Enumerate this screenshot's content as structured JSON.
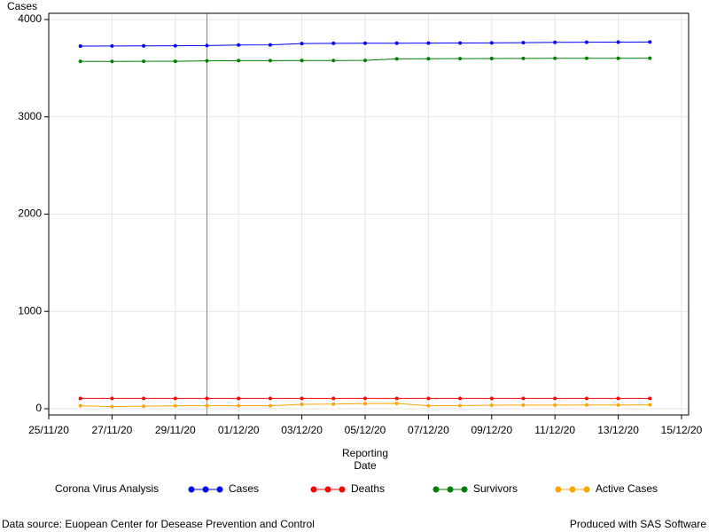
{
  "chart_data": {
    "type": "line",
    "y_label": "Cases",
    "x_label": [
      "Reporting",
      "Date"
    ],
    "legend_title": "Corona Virus Analysis",
    "x": [
      "26/11/20",
      "27/11/20",
      "28/11/20",
      "29/11/20",
      "30/11/20",
      "01/12/20",
      "02/12/20",
      "03/12/20",
      "04/12/20",
      "05/12/20",
      "06/12/20",
      "07/12/20",
      "08/12/20",
      "09/12/20",
      "10/12/20",
      "11/12/20",
      "12/12/20",
      "13/12/20",
      "14/12/20"
    ],
    "series": [
      {
        "name": "Cases",
        "color": "#0000ff",
        "values": [
          3727,
          3728,
          3729,
          3730,
          3732,
          3738,
          3739,
          3753,
          3755,
          3756,
          3757,
          3758,
          3759,
          3760,
          3762,
          3765,
          3767,
          3768,
          3769
        ]
      },
      {
        "name": "Deaths",
        "color": "#ff0000",
        "values": [
          106,
          106,
          106,
          106,
          106,
          106,
          106,
          106,
          106,
          106,
          106,
          106,
          106,
          106,
          106,
          106,
          106,
          106,
          106
        ]
      },
      {
        "name": "Survivors",
        "color": "#008000",
        "values": [
          3570,
          3570,
          3571,
          3571,
          3575,
          3578,
          3578,
          3579,
          3579,
          3580,
          3596,
          3597,
          3598,
          3599,
          3600,
          3601,
          3601,
          3602,
          3603
        ]
      },
      {
        "name": "Active Cases",
        "color": "#ffa500",
        "values": [
          30,
          22,
          26,
          30,
          31,
          32,
          30,
          45,
          48,
          52,
          55,
          30,
          32,
          36,
          37,
          37,
          38,
          39,
          40
        ]
      }
    ],
    "xlim": [
      "25/11/20",
      "15/12/20"
    ],
    "xticks": [
      "25/11/20",
      "27/11/20",
      "29/11/20",
      "01/12/20",
      "03/12/20",
      "05/12/20",
      "07/12/20",
      "09/12/20",
      "11/12/20",
      "13/12/20",
      "15/12/20"
    ],
    "ylim": [
      -64,
      4064
    ],
    "yticks": [
      0,
      1000,
      2000,
      3000,
      4000
    ],
    "grid": true,
    "reference_line_x": "30/11/20",
    "footnote_left": "Data source: Euopean Center for Desease Prevention and Control",
    "footnote_right": "Produced with SAS Software"
  }
}
